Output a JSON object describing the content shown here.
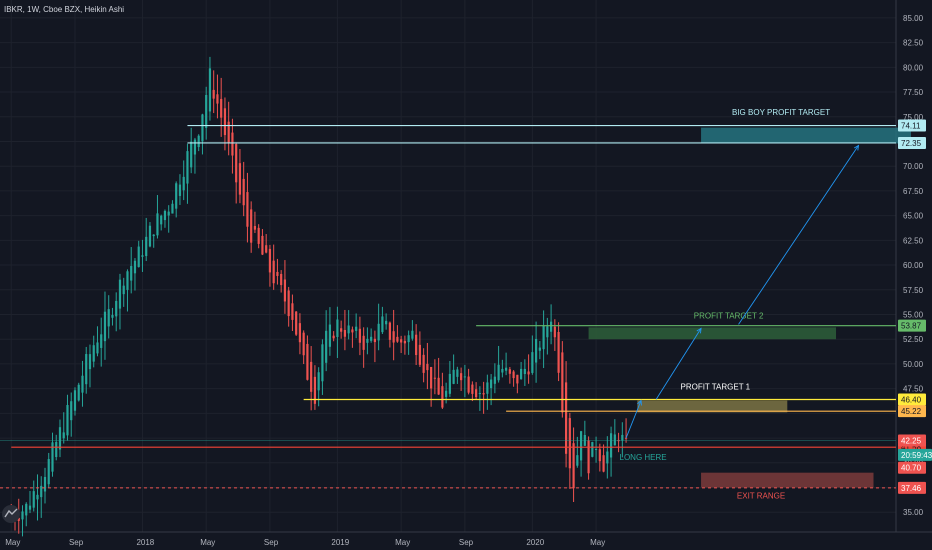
{
  "header": {
    "title": "IBKR, 1W, Cboe BZX, Heikin Ashi"
  },
  "colors": {
    "background": "#131722",
    "grid": "#1e222d",
    "up": "#26a69a",
    "down": "#ef5350",
    "axis_text": "#b2b5be",
    "big_boy": "#b2ebf2",
    "target2": "#66bb6a",
    "target1": "#ffeb3b",
    "orange": "#ffb74d",
    "long": "#26a69a",
    "exit": "#f44336",
    "last_price": "#26a69a"
  },
  "chart_data": {
    "type": "candlestick",
    "title": "IBKR, 1W, Cboe BZX, Heikin Ashi",
    "ylim": [
      33,
      86
    ],
    "y_ticks": [
      "35.00",
      "37.50",
      "40.00",
      "42.50",
      "45.00",
      "47.50",
      "50.00",
      "52.50",
      "55.00",
      "57.50",
      "60.00",
      "62.50",
      "65.00",
      "67.50",
      "70.00",
      "72.50",
      "75.00",
      "77.50",
      "80.00",
      "82.50",
      "85.00"
    ],
    "x_ticks": [
      "May",
      "Sep",
      "2018",
      "May",
      "Sep",
      "2019",
      "May",
      "Sep",
      "2020",
      "May"
    ],
    "x_tick_weeks": [
      0,
      17,
      35,
      52,
      69,
      87,
      104,
      121,
      139,
      156
    ],
    "weekly_close_anchors": [
      [
        0,
        34.6
      ],
      [
        4,
        35.5
      ],
      [
        10,
        40.0
      ],
      [
        16,
        46.0
      ],
      [
        22,
        52.0
      ],
      [
        26,
        55.0
      ],
      [
        30,
        59.0
      ],
      [
        34,
        61.0
      ],
      [
        38,
        64.0
      ],
      [
        42,
        66.0
      ],
      [
        46,
        70.0
      ],
      [
        50,
        74.0
      ],
      [
        53,
        79.0
      ],
      [
        56,
        75.0
      ],
      [
        59,
        70.0
      ],
      [
        63,
        64.0
      ],
      [
        67,
        61.0
      ],
      [
        71,
        58.0
      ],
      [
        75,
        55.0
      ],
      [
        78,
        50.0
      ],
      [
        81,
        47.0
      ],
      [
        83,
        52.0
      ],
      [
        87,
        54.0
      ],
      [
        91,
        53.0
      ],
      [
        95,
        52.0
      ],
      [
        99,
        54.0
      ],
      [
        103,
        52.0
      ],
      [
        107,
        53.0
      ],
      [
        111,
        49.0
      ],
      [
        115,
        46.0
      ],
      [
        119,
        50.0
      ],
      [
        122,
        48.0
      ],
      [
        126,
        47.0
      ],
      [
        130,
        50.0
      ],
      [
        134,
        48.0
      ],
      [
        138,
        50.0
      ],
      [
        142,
        53.0
      ],
      [
        144,
        55.0
      ],
      [
        146,
        50.0
      ],
      [
        148,
        42.0
      ],
      [
        150,
        38.0
      ],
      [
        152,
        44.0
      ],
      [
        154,
        40.0
      ],
      [
        156,
        42.0
      ],
      [
        158,
        40.0
      ],
      [
        160,
        42.0
      ],
      [
        162,
        43.0
      ],
      [
        164,
        41.5
      ]
    ],
    "levels": [
      {
        "name": "big-boy-upper",
        "price": 74.11,
        "start_week": 47,
        "tag": "74.11",
        "color": "#b2ebf2"
      },
      {
        "name": "big-boy-lower",
        "price": 72.35,
        "start_week": 47,
        "tag": "72.35",
        "color": "#b2ebf2"
      },
      {
        "name": "profit-target-2",
        "price": 53.87,
        "start_week": 124,
        "tag": "53.87",
        "color": "#66bb6a"
      },
      {
        "name": "profit-target-1",
        "price": 46.4,
        "start_week": 78,
        "tag": "46.40",
        "color": "#ffeb3b"
      },
      {
        "name": "orange-level",
        "price": 45.22,
        "start_week": 132,
        "tag": "45.22",
        "color": "#ffb74d"
      },
      {
        "name": "long-here-level",
        "price": 41.58,
        "start_week": 0,
        "tag": "41.58",
        "color": "#f44336"
      }
    ],
    "price_tags": [
      {
        "label": "42.25",
        "price": 42.25,
        "color": "#ef5350"
      },
      {
        "label": "20:59:43",
        "price": 40.8,
        "color": "#26a69a"
      },
      {
        "label": "40.70",
        "price": 39.5,
        "color": "#ef5350"
      },
      {
        "label": "37.46",
        "price": 37.46,
        "color": "#ef5350"
      }
    ],
    "zones": [
      {
        "name": "big-boy-zone",
        "label": "BIG BOY PROFIT TARGET",
        "x0_week": 184,
        "x1_week": 240,
        "y0": 72.3,
        "y1": 73.9,
        "color": "#26737f"
      },
      {
        "name": "target2-zone",
        "label": "PROFIT TARGET 2",
        "x0_week": 154,
        "x1_week": 220,
        "y0": 52.5,
        "y1": 53.7,
        "color": "#2e5f3a"
      },
      {
        "name": "target1-zone",
        "label": "PROFIT TARGET 1",
        "x0_week": 167,
        "x1_week": 207,
        "y0": 45.1,
        "y1": 46.3,
        "color": "#7c7444"
      },
      {
        "name": "exit-zone",
        "label": "EXIT RANGE",
        "x0_week": 184,
        "x1_week": 230,
        "y0": 37.5,
        "y1": 39.0,
        "color": "#7c3b3b"
      }
    ],
    "long_label": "LONG HERE",
    "arrows": [
      {
        "from_week": 164,
        "from_price": 42.5,
        "to_week": 168,
        "to_price": 46.3
      },
      {
        "from_week": 172,
        "from_price": 46.4,
        "to_week": 184,
        "to_price": 53.6
      },
      {
        "from_week": 194,
        "from_price": 54.0,
        "to_week": 226,
        "to_price": 72.1
      }
    ]
  }
}
